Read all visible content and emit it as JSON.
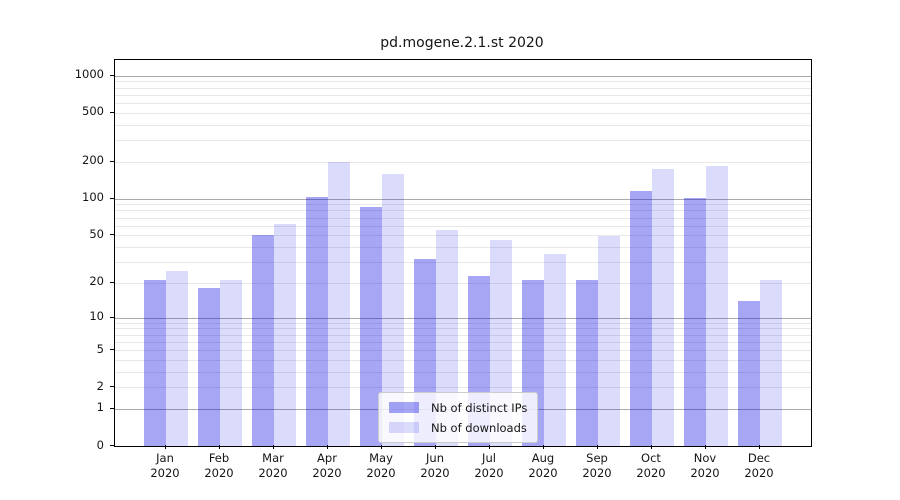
{
  "chart_data": {
    "type": "bar",
    "title": "pd.mogene.2.1.st 2020",
    "scale": "log1p",
    "categories": [
      "Jan",
      "Feb",
      "Mar",
      "Apr",
      "May",
      "Jun",
      "Jul",
      "Aug",
      "Sep",
      "Oct",
      "Nov",
      "Dec"
    ],
    "category_year_label": "2020",
    "series": [
      {
        "name": "Nb of distinct IPs",
        "color": "rgba(0,0,225,0.35)",
        "values": [
          21,
          18,
          50,
          103,
          85,
          32,
          23,
          21,
          21,
          115,
          101,
          14
        ]
      },
      {
        "name": "Nb of downloads",
        "color": "rgba(0,0,225,0.14)",
        "values": [
          25,
          21,
          62,
          199,
          160,
          55,
          46,
          35,
          49,
          176,
          185,
          21
        ]
      }
    ],
    "y_ticks": [
      0,
      1,
      2,
      5,
      10,
      20,
      50,
      100,
      200,
      500,
      1000
    ],
    "y_major_gridlines": [
      1,
      10,
      100,
      1000
    ],
    "ylim": [
      0,
      1340
    ],
    "grid": true,
    "legend": {
      "position": "lower center"
    },
    "colors": {
      "background": "#ffffff",
      "axis": "#000000",
      "text": "#151515",
      "major_grid": "#ababab",
      "minor_grid": "#e8e8e8"
    }
  }
}
